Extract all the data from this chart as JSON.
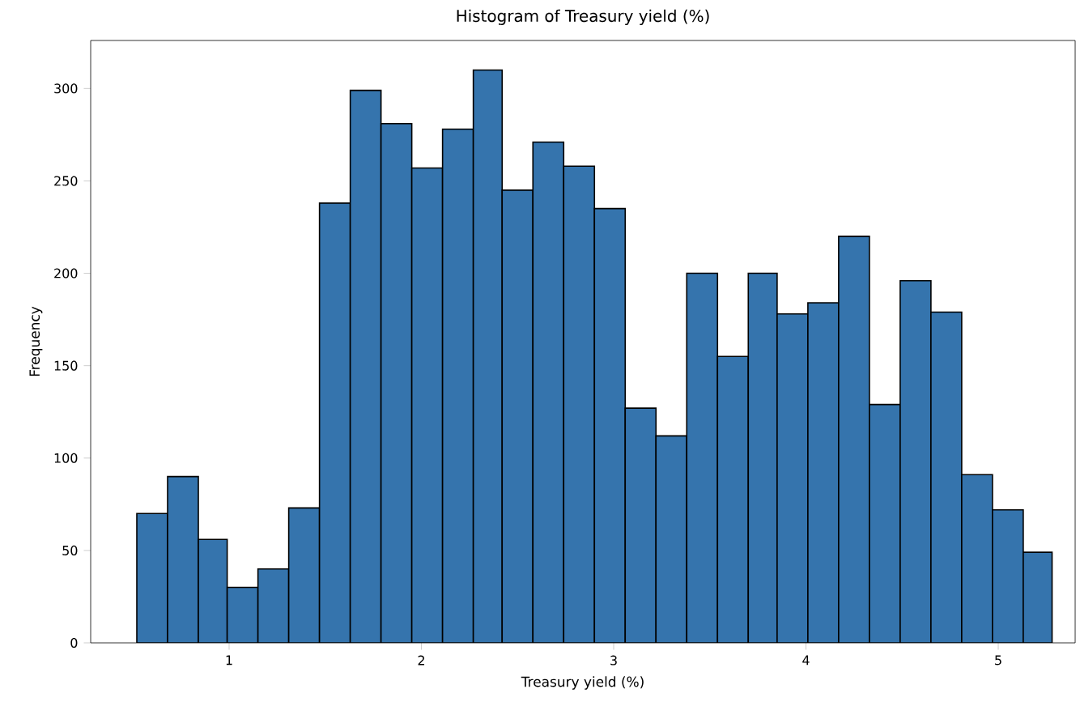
{
  "chart_data": {
    "type": "histogram",
    "title": "Histogram of Treasury yield (%)",
    "xlabel": "Treasury yield (%)",
    "ylabel": "Frequency",
    "bins": [
      0.52,
      0.68,
      0.84,
      0.99,
      1.15,
      1.31,
      1.47,
      1.63,
      1.79,
      1.95,
      2.11,
      2.27,
      2.42,
      2.58,
      2.74,
      2.9,
      3.06,
      3.22,
      3.38,
      3.54,
      3.7,
      3.85,
      4.01,
      4.17,
      4.33,
      4.49,
      4.65,
      4.81,
      4.97,
      5.13,
      5.28
    ],
    "values": [
      70,
      90,
      56,
      30,
      40,
      73,
      238,
      299,
      281,
      257,
      278,
      310,
      245,
      271,
      258,
      235,
      127,
      112,
      200,
      155,
      200,
      178,
      184,
      220,
      129,
      196,
      179,
      91,
      72,
      49
    ],
    "color": "#3574ad",
    "xlim": [
      0.28,
      5.4
    ],
    "ylim": [
      0,
      326
    ],
    "xticks": [
      1,
      2,
      3,
      4,
      5
    ],
    "yticks": [
      0,
      50,
      100,
      150,
      200,
      250,
      300
    ],
    "grid": false
  }
}
